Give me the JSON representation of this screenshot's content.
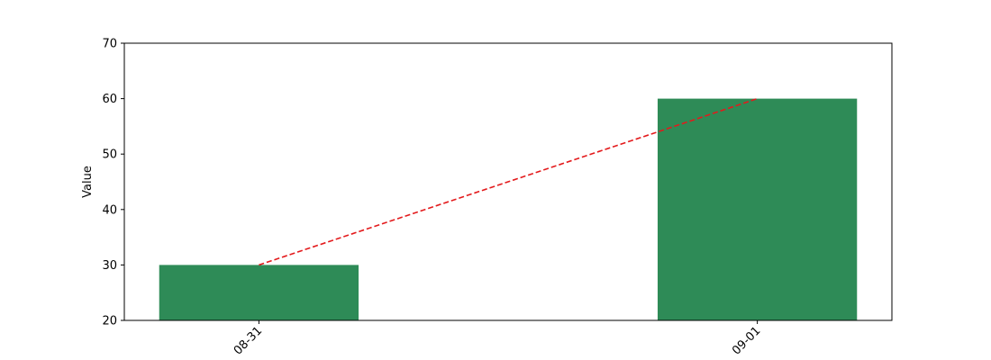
{
  "chart_data": {
    "type": "bar",
    "categories": [
      "08-31",
      "09-01"
    ],
    "values": [
      30,
      60
    ],
    "overlay_line": {
      "style": "dashed",
      "color": "#e31a1c",
      "values": [
        30,
        60
      ]
    },
    "bar_color": "#2e8b57",
    "title": "",
    "xlabel": "",
    "ylabel": "Value",
    "ylim": [
      20,
      70
    ],
    "yticks": [
      20,
      30,
      40,
      50,
      60,
      70
    ],
    "grid": false,
    "legend": "none"
  }
}
